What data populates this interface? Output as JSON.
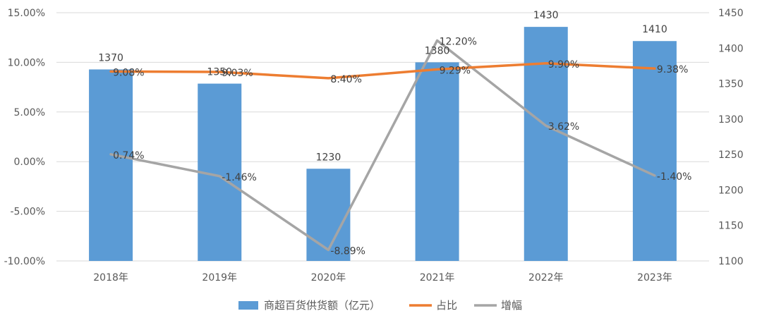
{
  "chart_data": {
    "type": "bar",
    "categories": [
      "2018年",
      "2019年",
      "2020年",
      "2021年",
      "2022年",
      "2023年"
    ],
    "series": [
      {
        "name": "商超百货供货额（亿元）",
        "kind": "bar",
        "axis": "right",
        "color": "#5B9BD5",
        "values": [
          1370,
          1350,
          1230,
          1380,
          1430,
          1410
        ],
        "labels": [
          "1370",
          "1350",
          "1230",
          "1380",
          "1430",
          "1410"
        ]
      },
      {
        "name": "占比",
        "kind": "line",
        "axis": "left",
        "color": "#ED7D31",
        "values": [
          9.08,
          9.03,
          8.4,
          9.29,
          9.9,
          9.38
        ],
        "labels": [
          "9.08%",
          "9.03%",
          "8.40%",
          "9.29%",
          "9.90%",
          "9.38%"
        ]
      },
      {
        "name": "增幅",
        "kind": "line",
        "axis": "left",
        "color": "#A5A5A5",
        "values": [
          0.74,
          -1.46,
          -8.89,
          12.2,
          3.62,
          -1.4
        ],
        "labels": [
          "0.74%",
          "-1.46%",
          "-8.89%",
          "12.20%",
          "3.62%",
          "-1.40%"
        ]
      }
    ],
    "left_axis": {
      "ylim": [
        -10,
        15
      ],
      "ticks": [
        15,
        10,
        5,
        0,
        -5,
        -10
      ],
      "tick_labels": [
        "15.00%",
        "10.00%",
        "5.00%",
        "0.00%",
        "-5.00%",
        "-10.00%"
      ]
    },
    "right_axis": {
      "ylim": [
        1100,
        1450
      ],
      "ticks": [
        1450,
        1400,
        1350,
        1300,
        1250,
        1200,
        1150,
        1100
      ],
      "tick_labels": [
        "1450",
        "1400",
        "1350",
        "1300",
        "1250",
        "1200",
        "1150",
        "1100"
      ]
    },
    "grid": true,
    "legend_position": "bottom"
  }
}
